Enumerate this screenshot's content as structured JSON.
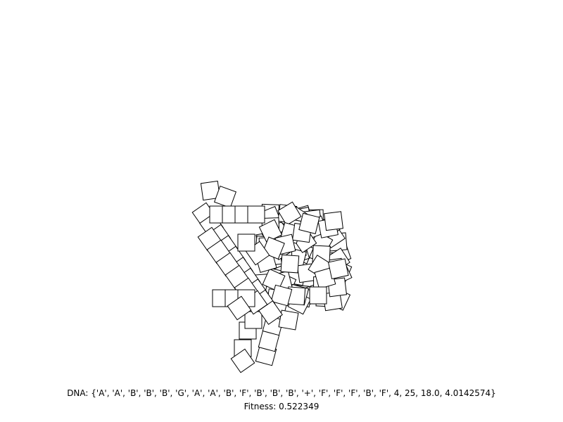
{
  "dna_text": "DNA: {'A', 'A', 'B', 'B', 'B', 'G', 'A', 'A', 'B', 'F', 'B', 'B', 'B', '+', 'F', 'F', 'F', 'B', 'F', 4, 25, 18.0, 4.0142574}",
  "fitness_text": "Fitness: 0.522349",
  "colors": {
    "background": "#ffffff",
    "stroke": "#000000",
    "fill": "#ffffff"
  }
}
